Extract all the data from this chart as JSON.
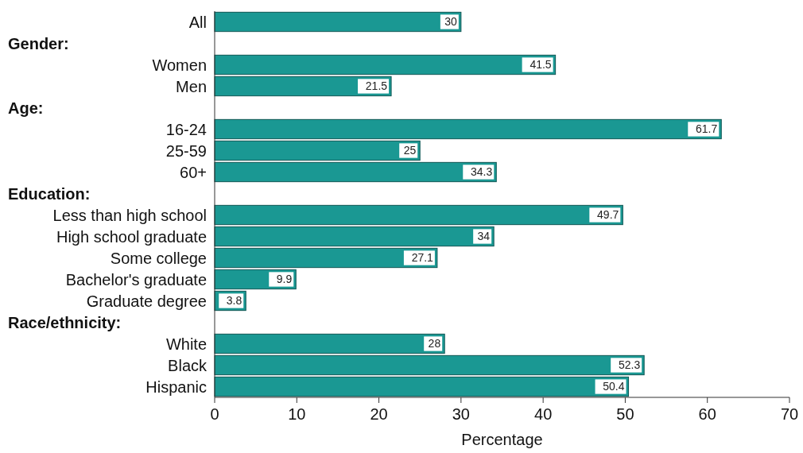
{
  "chart_data": {
    "type": "bar",
    "orientation": "horizontal",
    "xlabel": "Percentage",
    "categories": [
      "All",
      null,
      "Women",
      "Men",
      null,
      "16-24",
      "25-59",
      "60+",
      null,
      "Less than high school",
      "High school graduate",
      "Some college",
      "Bachelor's graduate",
      "Graduate degree",
      null,
      "White",
      "Black",
      "Hispanic"
    ],
    "annotations": [
      "Gender:",
      "Age:",
      "Education:",
      "Race/ethnicity:"
    ],
    "values": [
      30,
      null,
      41.5,
      21.5,
      null,
      61.7,
      25,
      34.3,
      null,
      49.7,
      34,
      27.1,
      9.9,
      3.8,
      null,
      28,
      52.3,
      50.4
    ],
    "color": "#1a9893",
    "xlim": [
      0,
      70
    ],
    "xticks": [
      0,
      10,
      20,
      30,
      40,
      50,
      60,
      70
    ],
    "data_labels": true,
    "grid": false
  }
}
